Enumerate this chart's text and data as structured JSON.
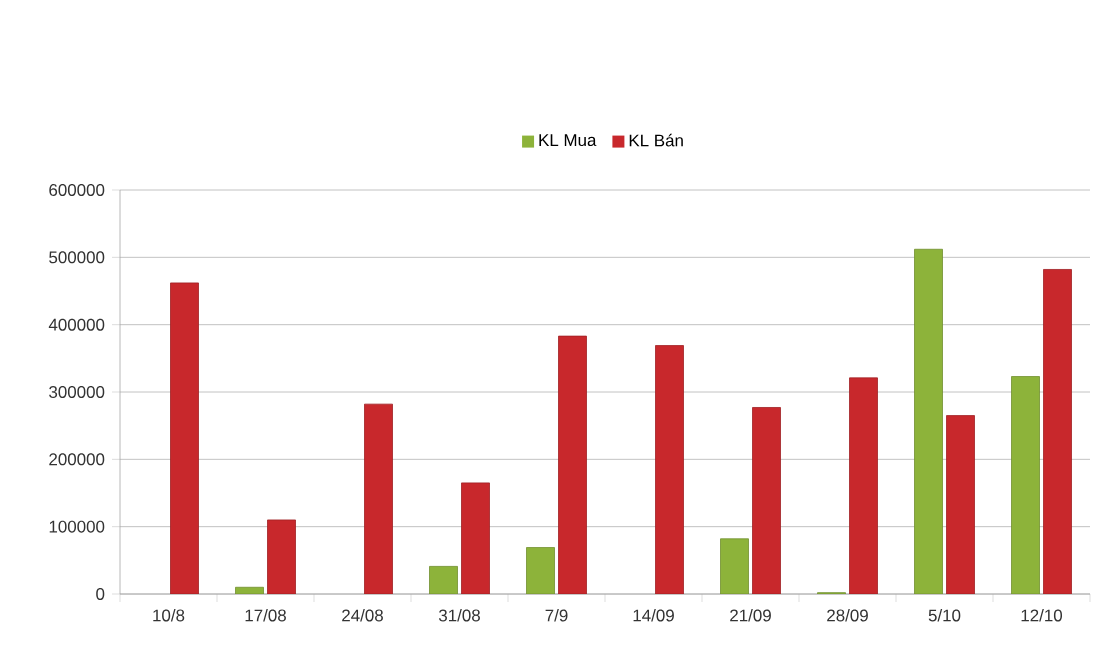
{
  "chart_data": {
    "type": "bar",
    "categories": [
      "10/8",
      "17/08",
      "24/08",
      "31/08",
      "7/9",
      "14/09",
      "21/09",
      "28/09",
      "5/10",
      "12/10"
    ],
    "series": [
      {
        "name": "KL Mua",
        "color": "#8db33a",
        "values": [
          null,
          10000,
          null,
          41000,
          69000,
          null,
          82000,
          2000,
          512000,
          323000
        ]
      },
      {
        "name": "KL Bán",
        "color": "#c8282c",
        "values": [
          462000,
          110000,
          282000,
          165000,
          383000,
          369000,
          277000,
          321000,
          265000,
          482000
        ]
      }
    ],
    "ylim": [
      0,
      600000
    ],
    "yticks": [
      0,
      100000,
      200000,
      300000,
      400000,
      500000,
      600000
    ],
    "grid": "y",
    "legend": "top"
  }
}
